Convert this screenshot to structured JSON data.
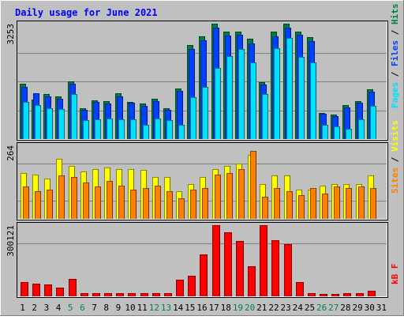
{
  "chart_data": {
    "type": "bar",
    "title": "Daily usage for June 2021",
    "categories": [
      "1",
      "2",
      "3",
      "4",
      "5",
      "6",
      "7",
      "8",
      "9",
      "10",
      "11",
      "12",
      "13",
      "14",
      "15",
      "16",
      "17",
      "18",
      "19",
      "20",
      "21",
      "22",
      "23",
      "24",
      "25",
      "26",
      "27",
      "28",
      "29",
      "30",
      "31"
    ],
    "weekend_days": [
      "5",
      "6",
      "12",
      "13",
      "19",
      "20",
      "26",
      "27"
    ],
    "panels": [
      {
        "id": "hits-files-pages",
        "ymax_label": "3253",
        "ylim": [
          0,
          3253
        ],
        "series": [
          {
            "name": "Hits",
            "color": "#008040",
            "values": [
              1560,
              1120,
              1280,
              1210,
              1620,
              880,
              1100,
              1070,
              1290,
              1050,
              1000,
              1130,
              880,
              1430,
              2650,
              2900,
              3253,
              3030,
              3030,
              2820,
              1600,
              3030,
              3253,
              3030,
              2870,
              740,
              680,
              950,
              1080,
              1400,
              0
            ]
          },
          {
            "name": "Files",
            "color": "#0040ff",
            "values": [
              1480,
              1300,
              1200,
              1130,
              1550,
              830,
              1050,
              1000,
              1210,
              1020,
              940,
              1080,
              830,
              1360,
              2540,
              2780,
              3140,
              2920,
              2950,
              2690,
              1530,
              2900,
              3150,
              2930,
              2760,
              710,
              640,
              900,
              1020,
              1330,
              0
            ]
          },
          {
            "name": "Pages",
            "color": "#00e0ff",
            "values": [
              1050,
              950,
              860,
              850,
              1260,
              540,
              560,
              580,
              550,
              560,
              390,
              570,
              540,
              390,
              1180,
              1480,
              2000,
              2350,
              2540,
              2170,
              1260,
              2560,
              2860,
              2310,
              2160,
              390,
              360,
              300,
              560,
              940,
              0
            ]
          }
        ]
      },
      {
        "id": "visits-sites",
        "ymax_label": "264",
        "ylim": [
          0,
          264
        ],
        "series": [
          {
            "name": "Visits",
            "color": "#ffff00",
            "values": [
              165,
              160,
              145,
              215,
              190,
              170,
              180,
              185,
              180,
              180,
              175,
              150,
              150,
              100,
              125,
              150,
              180,
              190,
              200,
              230,
              125,
              155,
              155,
              105,
              105,
              120,
              125,
              125,
              125,
              155,
              0
            ]
          },
          {
            "name": "Sites",
            "color": "#ff8000",
            "values": [
              115,
              100,
              105,
              155,
              150,
              130,
              115,
              135,
              120,
              105,
              110,
              120,
              100,
              75,
              105,
              110,
              160,
              165,
              180,
              245,
              80,
              110,
              100,
              85,
              110,
              90,
              115,
              110,
              115,
              110,
              0
            ]
          }
        ]
      },
      {
        "id": "kbytes",
        "ymax_label": "300121",
        "ylim": [
          0,
          300121
        ],
        "series": [
          {
            "name": "kB F",
            "color": "#ff0000",
            "values": [
              60000,
              52000,
              49000,
              37000,
              73000,
              12000,
              15000,
              15000,
              15000,
              12000,
              12000,
              15000,
              12000,
              71000,
              88000,
              176000,
              300121,
              269000,
              234000,
              128000,
              300121,
              237000,
              221000,
              60000,
              13000,
              9000,
              10000,
              15000,
              15000,
              25000,
              0
            ]
          }
        ]
      }
    ],
    "legend_right_top": [
      "Pages",
      "/",
      "Files",
      "/",
      "Hits"
    ],
    "legend_right_mid": [
      "Sites",
      "/",
      "Visits"
    ],
    "legend_right_bottom": [
      "kB F"
    ],
    "colors": {
      "background": "#c0c0c0",
      "title": "#0000ff",
      "weekday_label": "#000000",
      "weekend_label": "#00805c",
      "separator": "#000000"
    }
  }
}
